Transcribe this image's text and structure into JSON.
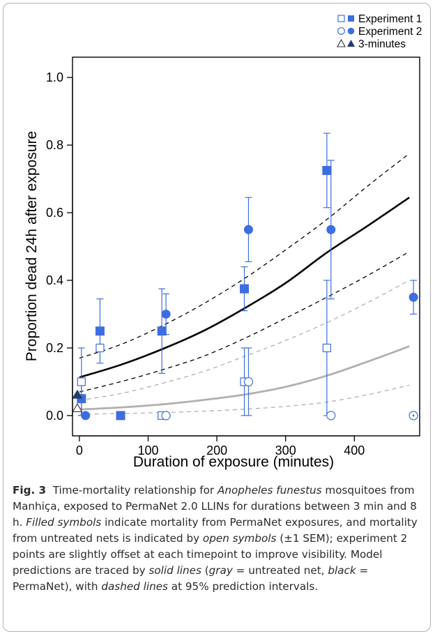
{
  "figure": {
    "label": "Fig. 3",
    "caption_parts": [
      {
        "text": "Time-mortality relationship for ",
        "style": "normal"
      },
      {
        "text": "Anopheles funestus",
        "style": "italic"
      },
      {
        "text": " mosquitoes from Manhiça, exposed to PermaNet 2.0 LLINs for durations between 3 min and 8 h. ",
        "style": "normal"
      },
      {
        "text": "Filled symbols",
        "style": "italic"
      },
      {
        "text": " indicate mortality from PermaNet exposures, and mortality from untreated nets is indicated by ",
        "style": "normal"
      },
      {
        "text": "open symbols",
        "style": "italic"
      },
      {
        "text": " (±1 SEM); experiment 2 points are slightly offset at each timepoint to improve visibility. Model predictions are traced by ",
        "style": "normal"
      },
      {
        "text": "solid lines",
        "style": "italic"
      },
      {
        "text": " (",
        "style": "normal"
      },
      {
        "text": "gray",
        "style": "italic"
      },
      {
        "text": " = untreated net, ",
        "style": "normal"
      },
      {
        "text": "black",
        "style": "italic"
      },
      {
        "text": " = PermaNet), with ",
        "style": "normal"
      },
      {
        "text": "dashed lines",
        "style": "italic"
      },
      {
        "text": " at 95% prediction intervals.",
        "style": "normal"
      }
    ]
  },
  "chart_data": {
    "type": "scatter",
    "title": "",
    "xlabel": "Duration of exposure (minutes)",
    "ylabel": "Proportion dead 24h after exposure",
    "xlim": [
      -10,
      495
    ],
    "ylim": [
      -0.06,
      1.06
    ],
    "xticks": [
      0,
      100,
      200,
      300,
      400
    ],
    "yticks": [
      0.0,
      0.2,
      0.4,
      0.6,
      0.8,
      1.0
    ],
    "ytick_labels": [
      "0.0",
      "0.2",
      "0.4",
      "0.6",
      "0.8",
      "1.0"
    ],
    "grid": false,
    "legend_position": "top-right",
    "legend": [
      {
        "label": "Experiment 1",
        "marker": "square"
      },
      {
        "label": "Experiment 2",
        "marker": "circle"
      },
      {
        "label": "3-minutes",
        "marker": "triangle"
      }
    ],
    "colors": {
      "points": "#3d6ee0",
      "triangle_filled": "#243a6e",
      "model_permanet": "#000000",
      "model_untreated": "#b0b0b0"
    },
    "series": [
      {
        "marker": "square",
        "fill": "filled",
        "points": [
          {
            "x": 3,
            "y": 0.05,
            "lo": 0.0,
            "hi": 0.1
          },
          {
            "x": 30,
            "y": 0.25,
            "lo": 0.155,
            "hi": 0.345
          },
          {
            "x": 60,
            "y": 0.0
          },
          {
            "x": 120,
            "y": 0.25,
            "lo": 0.125,
            "hi": 0.375
          },
          {
            "x": 240,
            "y": 0.375,
            "lo": 0.31,
            "hi": 0.44
          },
          {
            "x": 360,
            "y": 0.725,
            "lo": 0.615,
            "hi": 0.835
          }
        ]
      },
      {
        "marker": "square",
        "fill": "open",
        "points": [
          {
            "x": 3,
            "y": 0.1,
            "lo": 0.0,
            "hi": 0.2
          },
          {
            "x": 30,
            "y": 0.2
          },
          {
            "x": 120,
            "y": 0.0
          },
          {
            "x": 240,
            "y": 0.1,
            "lo": 0.0,
            "hi": 0.2
          },
          {
            "x": 360,
            "y": 0.2,
            "lo": 0.0,
            "hi": 0.4
          }
        ]
      },
      {
        "marker": "circle",
        "fill": "filled",
        "points": [
          {
            "x": 9,
            "y": 0.0
          },
          {
            "x": 126,
            "y": 0.3,
            "lo": 0.24,
            "hi": 0.36
          },
          {
            "x": 246,
            "y": 0.55,
            "lo": 0.455,
            "hi": 0.645
          },
          {
            "x": 366,
            "y": 0.55,
            "lo": 0.345,
            "hi": 0.755
          },
          {
            "x": 486,
            "y": 0.35,
            "lo": 0.3,
            "hi": 0.4
          }
        ]
      },
      {
        "marker": "circle",
        "fill": "open",
        "points": [
          {
            "x": 126,
            "y": 0.0
          },
          {
            "x": 246,
            "y": 0.1,
            "lo": 0.0,
            "hi": 0.2
          },
          {
            "x": 366,
            "y": 0.0
          },
          {
            "x": 486,
            "y": 0.0
          }
        ]
      },
      {
        "marker": "triangle",
        "fill": "filled",
        "points": [
          {
            "x": -3,
            "y": 0.06
          }
        ]
      },
      {
        "marker": "triangle",
        "fill": "open",
        "points": [
          {
            "x": -3,
            "y": 0.02
          }
        ]
      }
    ],
    "model_lines": [
      {
        "name": "PermaNet",
        "style": "solid",
        "color": "#000000",
        "x": [
          0,
          60,
          120,
          180,
          240,
          300,
          360,
          420,
          480
        ],
        "y": [
          0.113,
          0.15,
          0.196,
          0.25,
          0.317,
          0.392,
          0.482,
          0.562,
          0.645
        ]
      },
      {
        "name": "PermaNet upper 95%",
        "style": "dashed",
        "color": "#000000",
        "x": [
          0,
          60,
          120,
          180,
          240,
          300,
          360,
          420,
          480
        ],
        "y": [
          0.17,
          0.21,
          0.265,
          0.33,
          0.405,
          0.49,
          0.58,
          0.68,
          0.775
        ]
      },
      {
        "name": "PermaNet lower 95%",
        "style": "dashed",
        "color": "#000000",
        "x": [
          0,
          60,
          120,
          180,
          240,
          300,
          360,
          420,
          480
        ],
        "y": [
          0.07,
          0.1,
          0.135,
          0.175,
          0.228,
          0.288,
          0.35,
          0.415,
          0.485
        ]
      },
      {
        "name": "Untreated",
        "style": "solid",
        "color": "#b0b0b0",
        "x": [
          0,
          60,
          120,
          180,
          240,
          300,
          360,
          420,
          480
        ],
        "y": [
          0.018,
          0.024,
          0.033,
          0.046,
          0.062,
          0.085,
          0.118,
          0.16,
          0.205
        ]
      },
      {
        "name": "Untreated upper 95%",
        "style": "dashed",
        "color": "#b0b0b0",
        "x": [
          0,
          60,
          120,
          180,
          240,
          300,
          360,
          420,
          480
        ],
        "y": [
          0.045,
          0.065,
          0.095,
          0.13,
          0.175,
          0.222,
          0.275,
          0.335,
          0.4
        ]
      },
      {
        "name": "Untreated lower 95%",
        "style": "dashed",
        "color": "#b0b0b0",
        "x": [
          0,
          60,
          120,
          180,
          240,
          300,
          360,
          420,
          480
        ],
        "y": [
          0.004,
          0.006,
          0.009,
          0.013,
          0.019,
          0.027,
          0.04,
          0.062,
          0.09
        ]
      }
    ]
  }
}
